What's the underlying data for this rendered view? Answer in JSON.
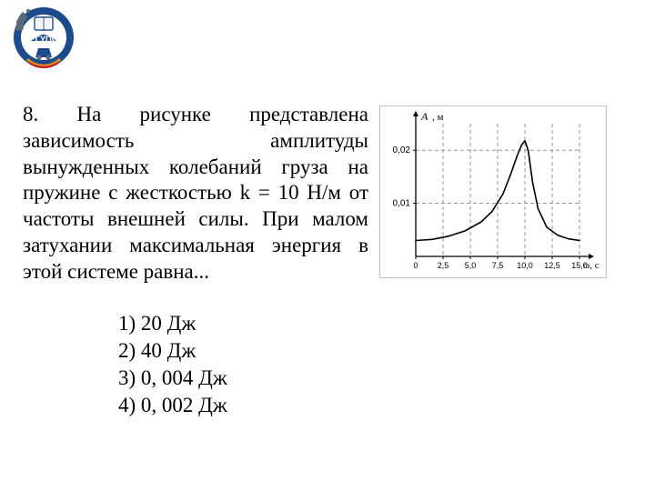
{
  "logo": {
    "text_top": "РГУПС",
    "colors": {
      "blue": "#1b4b8c",
      "white": "#ffffff",
      "red": "#c02020",
      "orange": "#e08a20",
      "gear": "#5a6a7a"
    }
  },
  "question": {
    "number": "8.",
    "text": "На рисунке представлена зависимость амплитуды вынужденных колебаний груза на пружине с жесткостью k = 10 Н/м от частоты внешней силы. При малом затухании максимальная энергия в этой системе равна..."
  },
  "answers": [
    "1) 20 Дж",
    "2) 40 Дж",
    "3) 0, 004 Дж",
    "4) 0, 002 Дж"
  ],
  "chart": {
    "type": "line",
    "y_axis_label": "A, м",
    "x_axis_label": "ω, с",
    "x_ticks": [
      "0",
      "2,5",
      "5,0",
      "7,5",
      "10,0",
      "12,5",
      "15,0"
    ],
    "y_ticks": [
      "0,01",
      "0,02"
    ],
    "xlim": [
      0,
      15
    ],
    "ylim": [
      0,
      0.025
    ],
    "x_grid_positions": [
      2.5,
      5.0,
      7.5,
      10.0,
      12.5,
      15.0
    ],
    "y_grid_positions": [
      0.01,
      0.02
    ],
    "curve": [
      [
        0.0,
        0.003
      ],
      [
        1.5,
        0.0032
      ],
      [
        3.0,
        0.0038
      ],
      [
        4.5,
        0.0048
      ],
      [
        6.0,
        0.0065
      ],
      [
        7.0,
        0.0085
      ],
      [
        8.0,
        0.0118
      ],
      [
        8.7,
        0.0155
      ],
      [
        9.3,
        0.019
      ],
      [
        9.7,
        0.021
      ],
      [
        10.0,
        0.0218
      ],
      [
        10.3,
        0.02
      ],
      [
        10.7,
        0.014
      ],
      [
        11.2,
        0.009
      ],
      [
        12.0,
        0.0055
      ],
      [
        13.0,
        0.004
      ],
      [
        14.0,
        0.0033
      ],
      [
        15.0,
        0.003
      ]
    ],
    "colors": {
      "background": "#ffffff",
      "grid": "#8a8a8a",
      "axis": "#000000",
      "curve": "#000000",
      "text": "#000000",
      "border": "#b5b5b5"
    },
    "stroke_width": 1.6,
    "grid_dash": "4 3",
    "tick_fontsize": 9,
    "label_fontsize": 12
  }
}
